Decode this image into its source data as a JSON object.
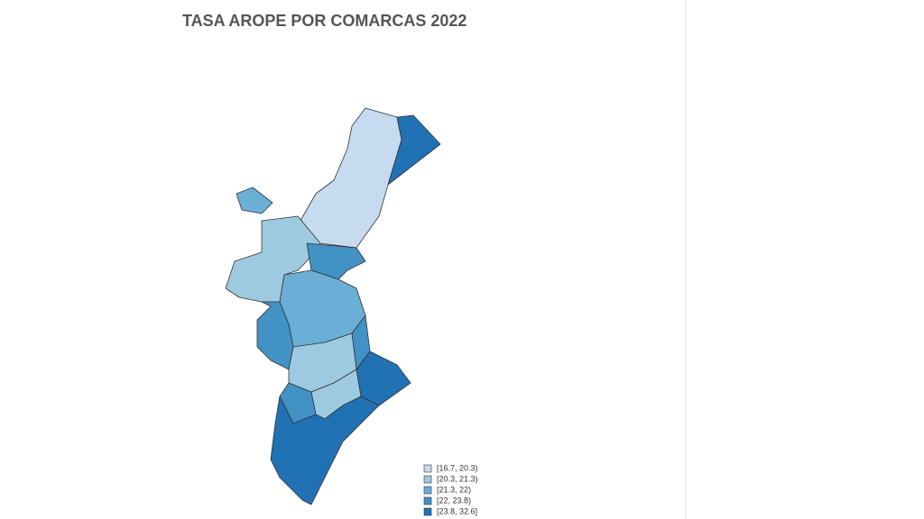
{
  "title": "TASA AROPE POR COMARCAS 2022",
  "legend": {
    "items": [
      {
        "label": "[16.7, 20.3)",
        "color": "#c6dbef"
      },
      {
        "label": "[20.3, 21.3)",
        "color": "#9ecae1"
      },
      {
        "label": "[21.3, 22)",
        "color": "#6baed6"
      },
      {
        "label": "[22, 23.8)",
        "color": "#4292c6"
      },
      {
        "label": "[23.8, 32.6]",
        "color": "#2171b5"
      }
    ]
  }
}
